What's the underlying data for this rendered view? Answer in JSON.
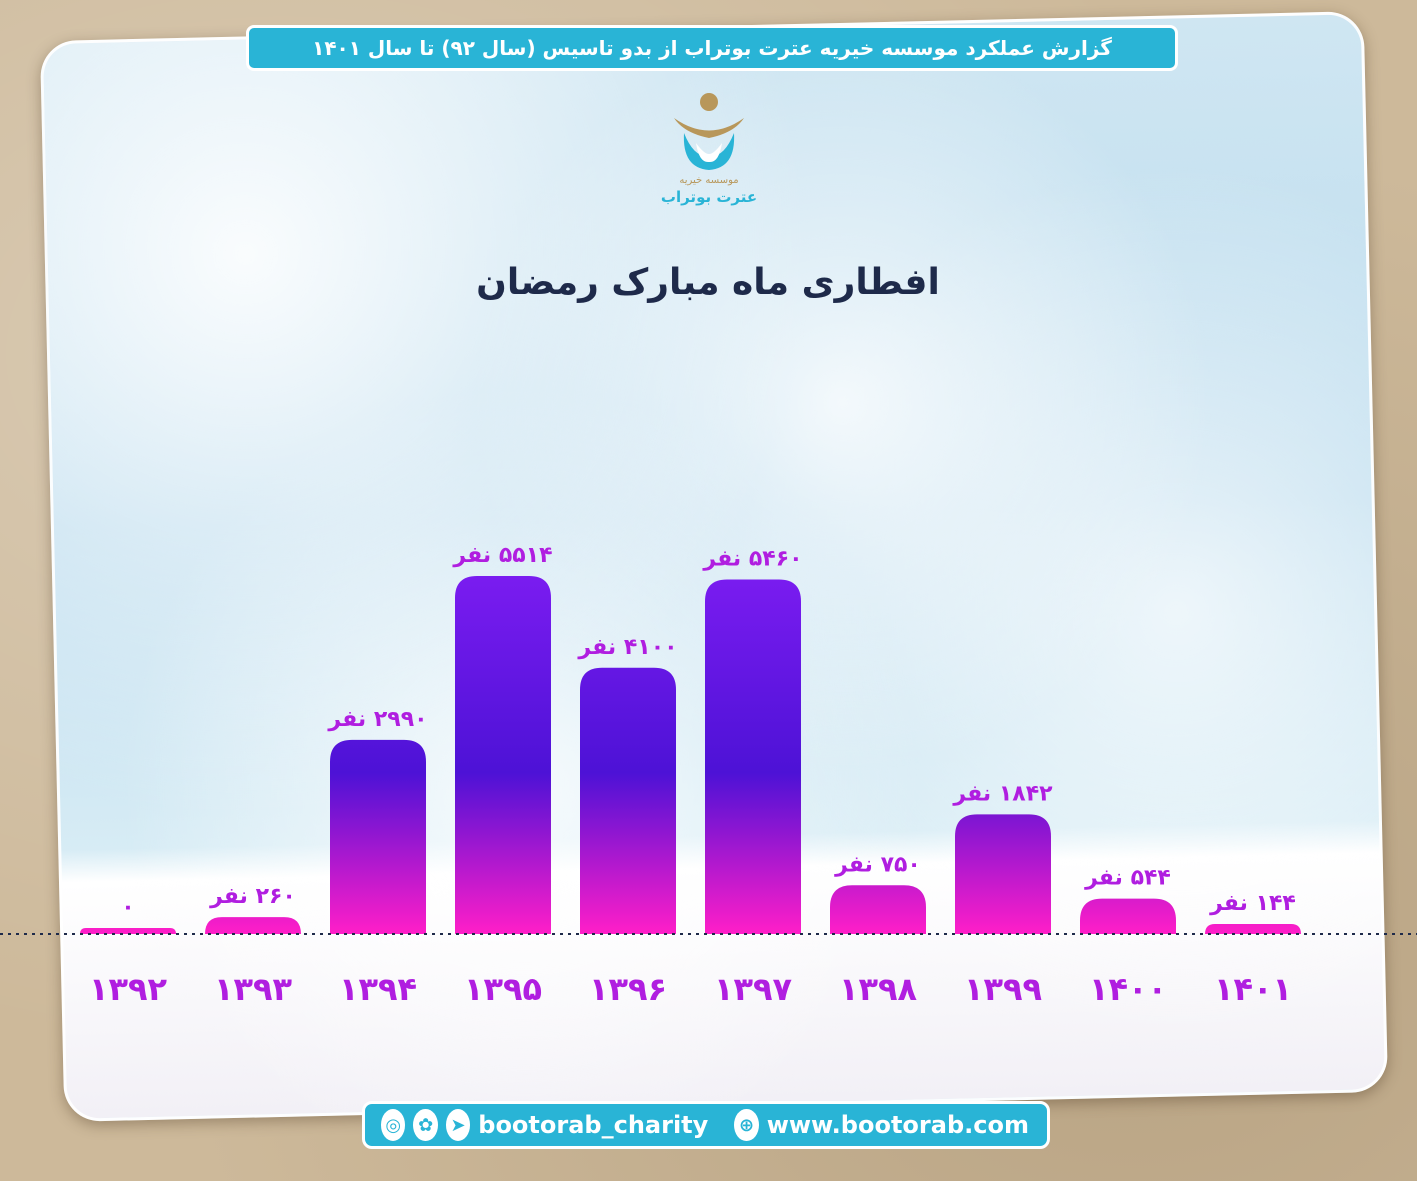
{
  "header": {
    "text": "گزارش عملکرد موسسه خیریه عترت بوتراب از بدو تاسیس (سال ۹۲) تا سال ۱۴۰۱"
  },
  "logo": {
    "line1": "موسسه خیریه",
    "line2": "عترت بوتراب"
  },
  "colors": {
    "accent": "#29b4d6",
    "bar_top": "#7a1cf0",
    "bar_bottom": "#ff1ec8",
    "label": "#b01ee0",
    "title": "#1e2a4a"
  },
  "chart_data": {
    "type": "bar",
    "title": "افطاری ماه مبارک رمضان",
    "categories": [
      "۱۳۹۲",
      "۱۳۹۳",
      "۱۳۹۴",
      "۱۳۹۵",
      "۱۳۹۶",
      "۱۳۹۷",
      "۱۳۹۸",
      "۱۳۹۹",
      "۱۴۰۰",
      "۱۴۰۱"
    ],
    "values": [
      0,
      260,
      2990,
      5514,
      4100,
      5460,
      750,
      1842,
      544,
      144
    ],
    "value_labels": [
      "۰",
      "۲۶۰ نفر",
      "۲۹۹۰ نفر",
      "۵۵۱۴ نفر",
      "۴۱۰۰ نفر",
      "۵۴۶۰ نفر",
      "۷۵۰ نفر",
      "۱۸۴۲ نفر",
      "۵۴۴ نفر",
      "۱۴۴ نفر"
    ],
    "ylim": [
      0,
      5514
    ],
    "grid": false
  },
  "footer": {
    "handle": "bootorab_charity",
    "website": "www.bootorab.com",
    "icons": [
      "instagram-icon",
      "aparat-icon",
      "telegram-icon",
      "globe-icon"
    ]
  }
}
